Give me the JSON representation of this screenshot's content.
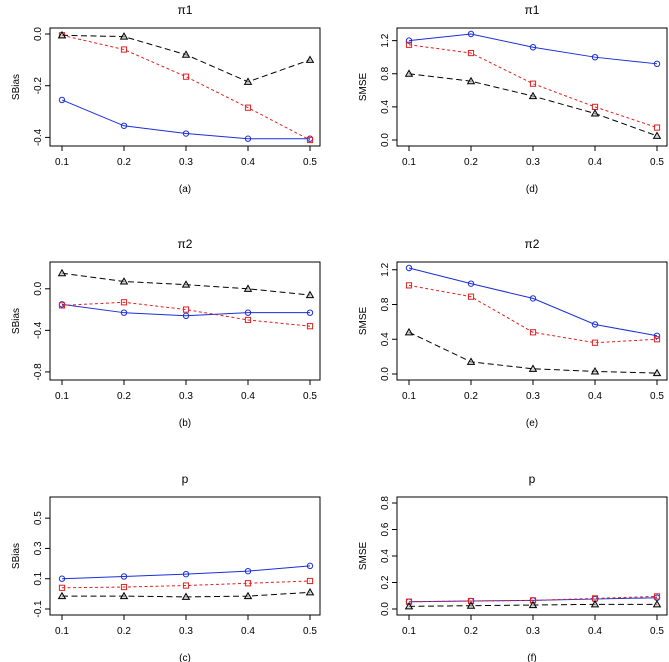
{
  "chart_data": [
    {
      "type": "line",
      "id": "a",
      "title": "π1",
      "caption": "(a)",
      "ylabel": "SBias",
      "x": [
        0.1,
        0.2,
        0.3,
        0.4,
        0.5
      ],
      "xticks": [
        "0.1",
        "0.2",
        "0.3",
        "0.4",
        "0.5"
      ],
      "ylim": [
        -0.41,
        0.0
      ],
      "yticks": [
        -0.4,
        -0.2,
        0.0
      ],
      "ytick_labels": [
        "-0.4",
        "-0.2",
        "0.0"
      ],
      "series": [
        {
          "style": "blue-circle",
          "values": [
            -0.255,
            -0.355,
            -0.385,
            -0.405,
            -0.405
          ]
        },
        {
          "style": "red-square",
          "values": [
            -0.005,
            -0.06,
            -0.165,
            -0.285,
            -0.41
          ]
        },
        {
          "style": "black-triangle",
          "values": [
            -0.005,
            -0.01,
            -0.08,
            -0.185,
            -0.1
          ]
        }
      ]
    },
    {
      "type": "line",
      "id": "d",
      "title": "π1",
      "caption": "(d)",
      "ylabel": "SMSE",
      "x": [
        0.1,
        0.2,
        0.3,
        0.4,
        0.5
      ],
      "xticks": [
        "0.1",
        "0.2",
        "0.3",
        "0.4",
        "0.5"
      ],
      "ylim": [
        0.0,
        1.28
      ],
      "yticks": [
        0.0,
        0.4,
        0.8,
        1.2
      ],
      "ytick_labels": [
        "0.0",
        "0.4",
        "0.8",
        "1.2"
      ],
      "series": [
        {
          "style": "blue-circle",
          "values": [
            1.2,
            1.28,
            1.12,
            1.0,
            0.92
          ]
        },
        {
          "style": "red-square",
          "values": [
            1.15,
            1.05,
            0.68,
            0.4,
            0.15
          ]
        },
        {
          "style": "black-triangle",
          "values": [
            0.8,
            0.71,
            0.53,
            0.32,
            0.05
          ]
        }
      ]
    },
    {
      "type": "line",
      "id": "b",
      "title": "π2",
      "caption": "(b)",
      "ylabel": "SBias",
      "x": [
        0.1,
        0.2,
        0.3,
        0.4,
        0.5
      ],
      "xticks": [
        "0.1",
        "0.2",
        "0.3",
        "0.4",
        "0.5"
      ],
      "ylim": [
        -0.82,
        0.2
      ],
      "yticks": [
        -0.8,
        -0.4,
        0.0
      ],
      "ytick_labels": [
        "-0.8",
        "-0.4",
        "0.0"
      ],
      "series": [
        {
          "style": "blue-circle",
          "values": [
            -0.15,
            -0.23,
            -0.26,
            -0.23,
            -0.23
          ]
        },
        {
          "style": "red-square",
          "values": [
            -0.16,
            -0.13,
            -0.2,
            -0.3,
            -0.36
          ]
        },
        {
          "style": "black-triangle",
          "values": [
            0.15,
            0.07,
            0.04,
            0.0,
            -0.06
          ]
        }
      ]
    },
    {
      "type": "line",
      "id": "e",
      "title": "π2",
      "caption": "(e)",
      "ylabel": "SMSE",
      "x": [
        0.1,
        0.2,
        0.3,
        0.4,
        0.5
      ],
      "xticks": [
        "0.1",
        "0.2",
        "0.3",
        "0.4",
        "0.5"
      ],
      "ylim": [
        0.0,
        1.22
      ],
      "yticks": [
        0.0,
        0.4,
        0.8,
        1.2
      ],
      "ytick_labels": [
        "0.0",
        "0.4",
        "0.8",
        "1.2"
      ],
      "series": [
        {
          "style": "blue-circle",
          "values": [
            1.22,
            1.04,
            0.87,
            0.57,
            0.44
          ]
        },
        {
          "style": "red-square",
          "values": [
            1.02,
            0.89,
            0.48,
            0.36,
            0.4
          ]
        },
        {
          "style": "black-triangle",
          "values": [
            0.48,
            0.14,
            0.06,
            0.03,
            0.01
          ]
        }
      ]
    },
    {
      "type": "line",
      "id": "c",
      "title": "p",
      "caption": "(c)",
      "ylabel": "SBias",
      "x": [
        0.1,
        0.2,
        0.3,
        0.4,
        0.5
      ],
      "xticks": [
        "0.1",
        "0.2",
        "0.3",
        "0.4",
        "0.5"
      ],
      "ylim": [
        -0.1,
        0.6
      ],
      "yticks": [
        -0.1,
        0.1,
        0.3,
        0.5
      ],
      "ytick_labels": [
        "-0.1",
        "0.1",
        "0.3",
        "0.5"
      ],
      "series": [
        {
          "style": "blue-circle",
          "values": [
            0.1,
            0.115,
            0.13,
            0.15,
            0.185
          ]
        },
        {
          "style": "red-square",
          "values": [
            0.04,
            0.045,
            0.055,
            0.07,
            0.085
          ]
        },
        {
          "style": "black-triangle",
          "values": [
            -0.015,
            -0.015,
            -0.02,
            -0.015,
            0.01
          ]
        }
      ]
    },
    {
      "type": "line",
      "id": "f",
      "title": "p",
      "caption": "(f)",
      "ylabel": "SMSE",
      "x": [
        0.1,
        0.2,
        0.3,
        0.4,
        0.5
      ],
      "xticks": [
        "0.1",
        "0.2",
        "0.3",
        "0.4",
        "0.5"
      ],
      "ylim": [
        0.0,
        0.8
      ],
      "yticks": [
        0.0,
        0.2,
        0.4,
        0.6,
        0.8
      ],
      "ytick_labels": [
        "0.0",
        "0.2",
        "0.4",
        "0.6",
        "0.8"
      ],
      "series": [
        {
          "style": "blue-circle",
          "values": [
            0.055,
            0.06,
            0.065,
            0.075,
            0.085
          ]
        },
        {
          "style": "red-square",
          "values": [
            0.055,
            0.06,
            0.065,
            0.08,
            0.095
          ]
        },
        {
          "style": "black-triangle",
          "values": [
            0.02,
            0.025,
            0.03,
            0.035,
            0.035
          ]
        }
      ]
    }
  ],
  "colors": {
    "blue": "#1a2fd6",
    "red": "#e02020",
    "black": "#000000",
    "triangle_fill": "#bdbdbd"
  }
}
